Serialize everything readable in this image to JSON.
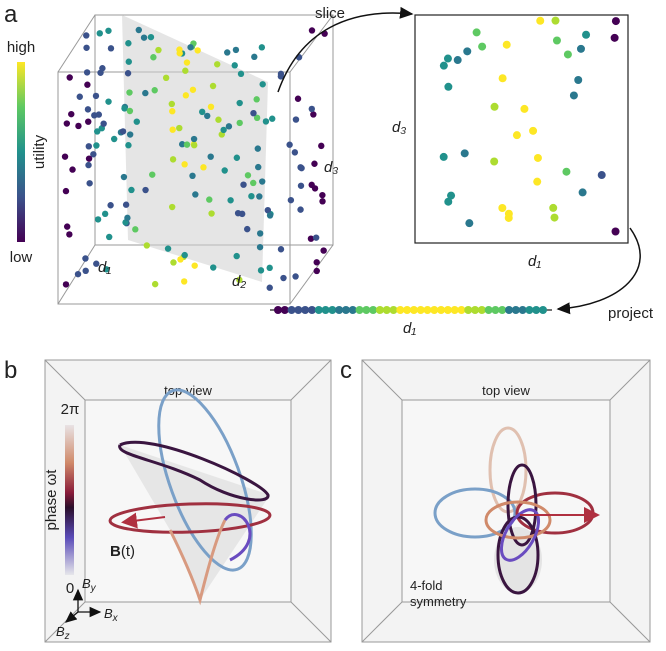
{
  "panel_a": {
    "label": "a",
    "colorbar": {
      "high": "high",
      "low": "low",
      "title": "utility"
    },
    "cube_axes": {
      "d1": "d₁",
      "d2": "d₂",
      "d3": "d₃"
    },
    "slice": {
      "caption": "slice",
      "x_axis": "d₁",
      "y_axis": "d₃"
    },
    "project": {
      "caption": "project",
      "axis": "d₁"
    }
  },
  "panel_b": {
    "label": "b",
    "view": "top view",
    "colorbar": {
      "top": "2π",
      "bottom": "0",
      "title": "phase ωt"
    },
    "vector": {
      "symbol": "B",
      "arg": "(t)"
    },
    "axes": {
      "y": "B",
      "y_sub": "y",
      "x": "B",
      "x_sub": "x",
      "z": "B",
      "z_sub": "z"
    }
  },
  "panel_c": {
    "label": "c",
    "view": "top view",
    "note": [
      "4-fold",
      "symmetry"
    ]
  }
}
